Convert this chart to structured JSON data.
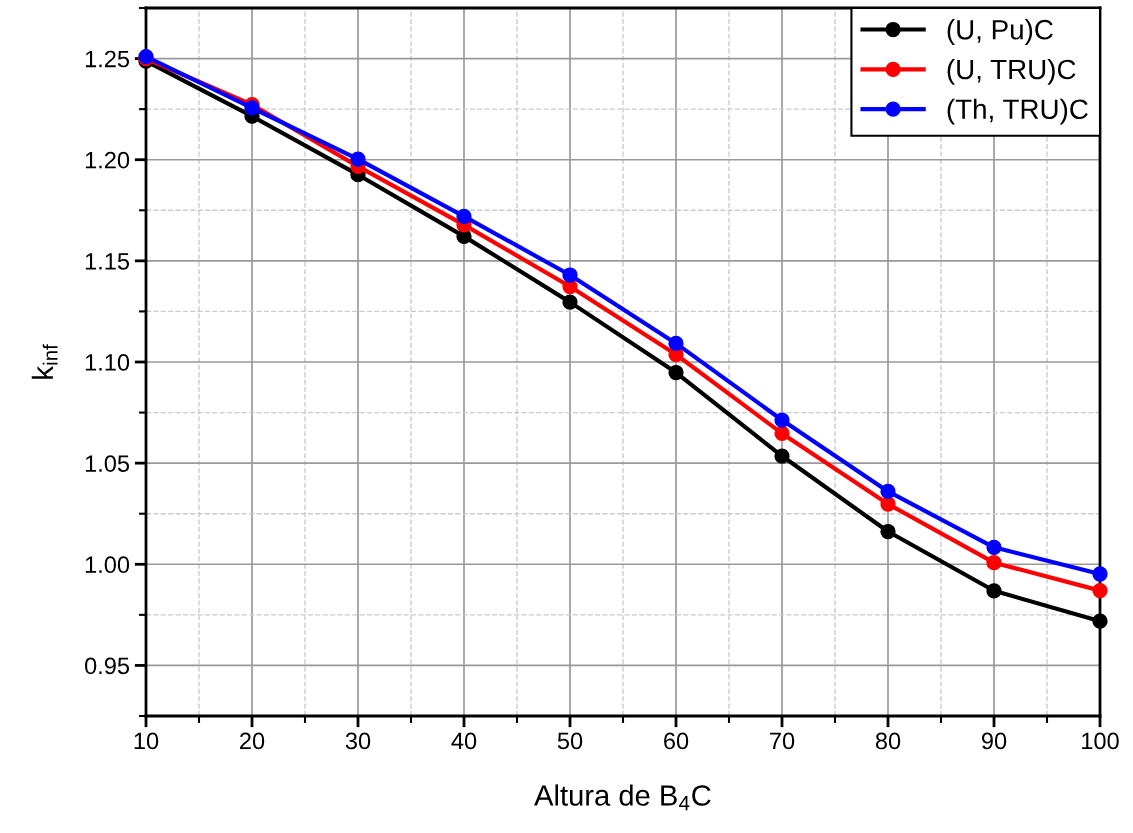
{
  "chart_data": {
    "type": "line",
    "xlabel": "Altura de B$_{4}$C",
    "ylabel": "k$_{inf}$",
    "x": [
      10,
      20,
      30,
      40,
      50,
      60,
      70,
      80,
      90,
      100
    ],
    "series": [
      {
        "name": "(U, Pu)C",
        "color": "#000000",
        "values": [
          1.2487,
          1.2215,
          1.1926,
          1.1621,
          1.1296,
          1.0948,
          1.0535,
          1.0162,
          0.9869,
          0.9719
        ]
      },
      {
        "name": "(U, TRU)C",
        "color": "#ff0000",
        "values": [
          1.25,
          1.2272,
          1.1967,
          1.1678,
          1.1373,
          1.1037,
          1.0647,
          1.0298,
          1.0008,
          0.987
        ]
      },
      {
        "name": "(Th, TRU)C",
        "color": "#0000ff",
        "values": [
          1.251,
          1.2256,
          1.2003,
          1.172,
          1.143,
          1.1092,
          1.0713,
          1.036,
          1.0084,
          0.9952
        ]
      }
    ],
    "xlim": [
      10,
      100
    ],
    "xticks": [
      10,
      20,
      30,
      40,
      50,
      60,
      70,
      80,
      90,
      100
    ],
    "ylim": [
      0.925,
      1.275
    ],
    "yticks": [
      {
        "value": 0.95,
        "label": "0.95"
      },
      {
        "value": 1.0,
        "label": "1.00"
      },
      {
        "value": 1.05,
        "label": "1.05"
      },
      {
        "value": 1.1,
        "label": "1.10"
      },
      {
        "value": 1.15,
        "label": "1.15"
      },
      {
        "value": 1.2,
        "label": "1.20"
      },
      {
        "value": 1.25,
        "label": "1.25"
      }
    ],
    "grid": true,
    "legend": "top right",
    "marker": "circle",
    "line_style": "solid"
  }
}
